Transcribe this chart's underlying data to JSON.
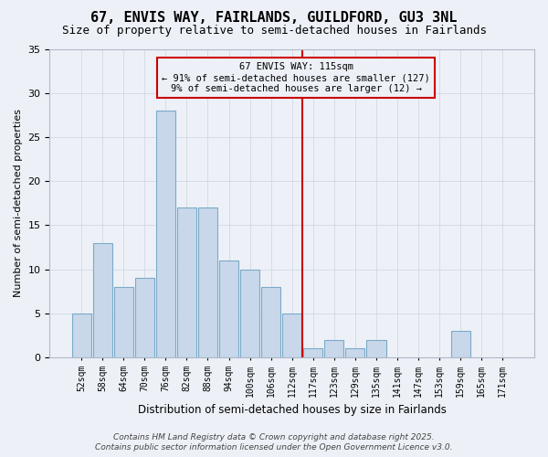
{
  "title": "67, ENVIS WAY, FAIRLANDS, GUILDFORD, GU3 3NL",
  "subtitle": "Size of property relative to semi-detached houses in Fairlands",
  "xlabel": "Distribution of semi-detached houses by size in Fairlands",
  "ylabel": "Number of semi-detached properties",
  "footer_line1": "Contains HM Land Registry data © Crown copyright and database right 2025.",
  "footer_line2": "Contains public sector information licensed under the Open Government Licence v3.0.",
  "bins": [
    "52sqm",
    "58sqm",
    "64sqm",
    "70sqm",
    "76sqm",
    "82sqm",
    "88sqm",
    "94sqm",
    "100sqm",
    "106sqm",
    "112sqm",
    "117sqm",
    "123sqm",
    "129sqm",
    "135sqm",
    "141sqm",
    "147sqm",
    "153sqm",
    "159sqm",
    "165sqm",
    "171sqm"
  ],
  "values": [
    5,
    13,
    8,
    9,
    28,
    17,
    17,
    11,
    10,
    8,
    5,
    1,
    2,
    1,
    2,
    0,
    0,
    0,
    3,
    0,
    0
  ],
  "bar_color": "#c8d8ea",
  "bar_edge_color": "#7aaac8",
  "grid_color": "#d0d8e4",
  "bg_color": "#edf1f7",
  "vline_x_bin": 11,
  "vline_color": "#cc0000",
  "annotation_text": "67 ENVIS WAY: 115sqm\n← 91% of semi-detached houses are smaller (127)\n9% of semi-detached houses are larger (12) →",
  "annotation_box_facecolor": "#edf1f7",
  "annotation_box_edgecolor": "#cc0000",
  "ylim": [
    0,
    35
  ],
  "yticks": [
    0,
    5,
    10,
    15,
    20,
    25,
    30,
    35
  ]
}
